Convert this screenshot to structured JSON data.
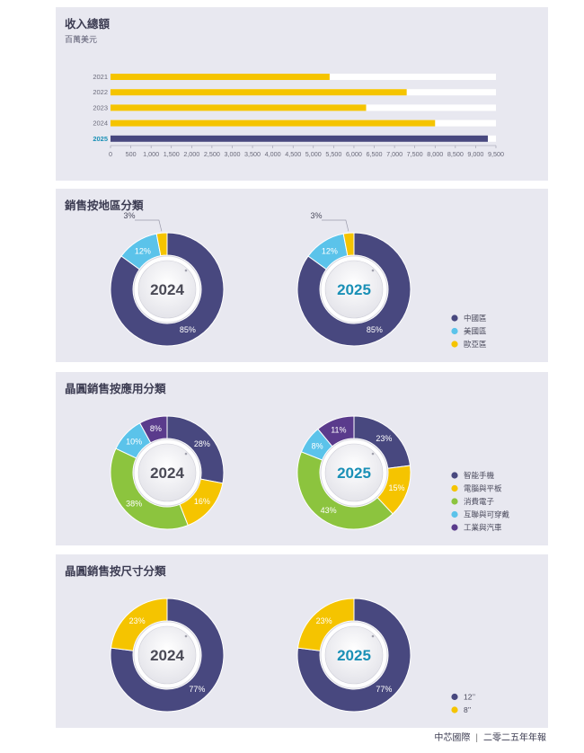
{
  "colors": {
    "navy": "#48487f",
    "yellow": "#f5c400",
    "sky": "#5bc3ea",
    "green": "#8cc43e",
    "purple": "#5a3b8c",
    "year2025": "#1a90b6",
    "year2024": "#4a4a56"
  },
  "revenue": {
    "title": "收入總額",
    "subtitle": "百萬美元"
  },
  "region": {
    "title": "銷售按地區分類"
  },
  "application": {
    "title": "晶圓銷售按應用分類"
  },
  "size": {
    "title": "晶圓銷售按尺寸分類"
  },
  "footer": {
    "company": "中芯國際",
    "separator": "|",
    "report": "二零二五年年報"
  },
  "chart_data": [
    {
      "type": "bar",
      "orientation": "horizontal",
      "categories": [
        "2021",
        "2022",
        "2023",
        "2024",
        "2025"
      ],
      "values": [
        5400,
        7300,
        6300,
        8000,
        9300
      ],
      "highlight": "2025",
      "xlim": [
        0,
        9500
      ],
      "xticks": [
        "0",
        "500",
        "1,000",
        "1,500",
        "2,000",
        "2,500",
        "3,000",
        "3,500",
        "4,000",
        "4,500",
        "5,000",
        "5,500",
        "6,000",
        "6,500",
        "7,000",
        "7,500",
        "8,000",
        "8,500",
        "9,000",
        "9,500"
      ],
      "title": "收入總額",
      "subtitle": "百萬美元"
    },
    {
      "type": "pie",
      "title": "銷售按地區分類",
      "legend": [
        "中國區",
        "美國區",
        "歐亞區"
      ],
      "legend_colors": [
        "#48487f",
        "#5bc3ea",
        "#f5c400"
      ],
      "charts": [
        {
          "year": "2024",
          "values": [
            85,
            12,
            3
          ],
          "labels": [
            "85%",
            "12%",
            "3%"
          ]
        },
        {
          "year": "2025",
          "values": [
            85,
            12,
            3
          ],
          "labels": [
            "85%",
            "12%",
            "3%"
          ]
        }
      ]
    },
    {
      "type": "pie",
      "title": "晶圓銷售按應用分類",
      "legend": [
        "智能手機",
        "電腦與平板",
        "消費電子",
        "互聯與可穿戴",
        "工業與汽車"
      ],
      "legend_colors": [
        "#48487f",
        "#f5c400",
        "#8cc43e",
        "#5bc3ea",
        "#5a3b8c"
      ],
      "charts": [
        {
          "year": "2024",
          "values": [
            28,
            16,
            38,
            10,
            8
          ],
          "labels": [
            "28%",
            "16%",
            "38%",
            "10%",
            "8%"
          ]
        },
        {
          "year": "2025",
          "values": [
            23,
            15,
            43,
            8,
            11
          ],
          "labels": [
            "23%",
            "15%",
            "43%",
            "8%",
            "11%"
          ]
        }
      ]
    },
    {
      "type": "pie",
      "title": "晶圓銷售按尺寸分類",
      "legend": [
        "12’’",
        "8’’"
      ],
      "legend_colors": [
        "#48487f",
        "#f5c400"
      ],
      "charts": [
        {
          "year": "2024",
          "values": [
            77,
            23
          ],
          "labels": [
            "77%",
            "23%"
          ]
        },
        {
          "year": "2025",
          "values": [
            77,
            23
          ],
          "labels": [
            "77%",
            "23%"
          ]
        }
      ]
    }
  ]
}
